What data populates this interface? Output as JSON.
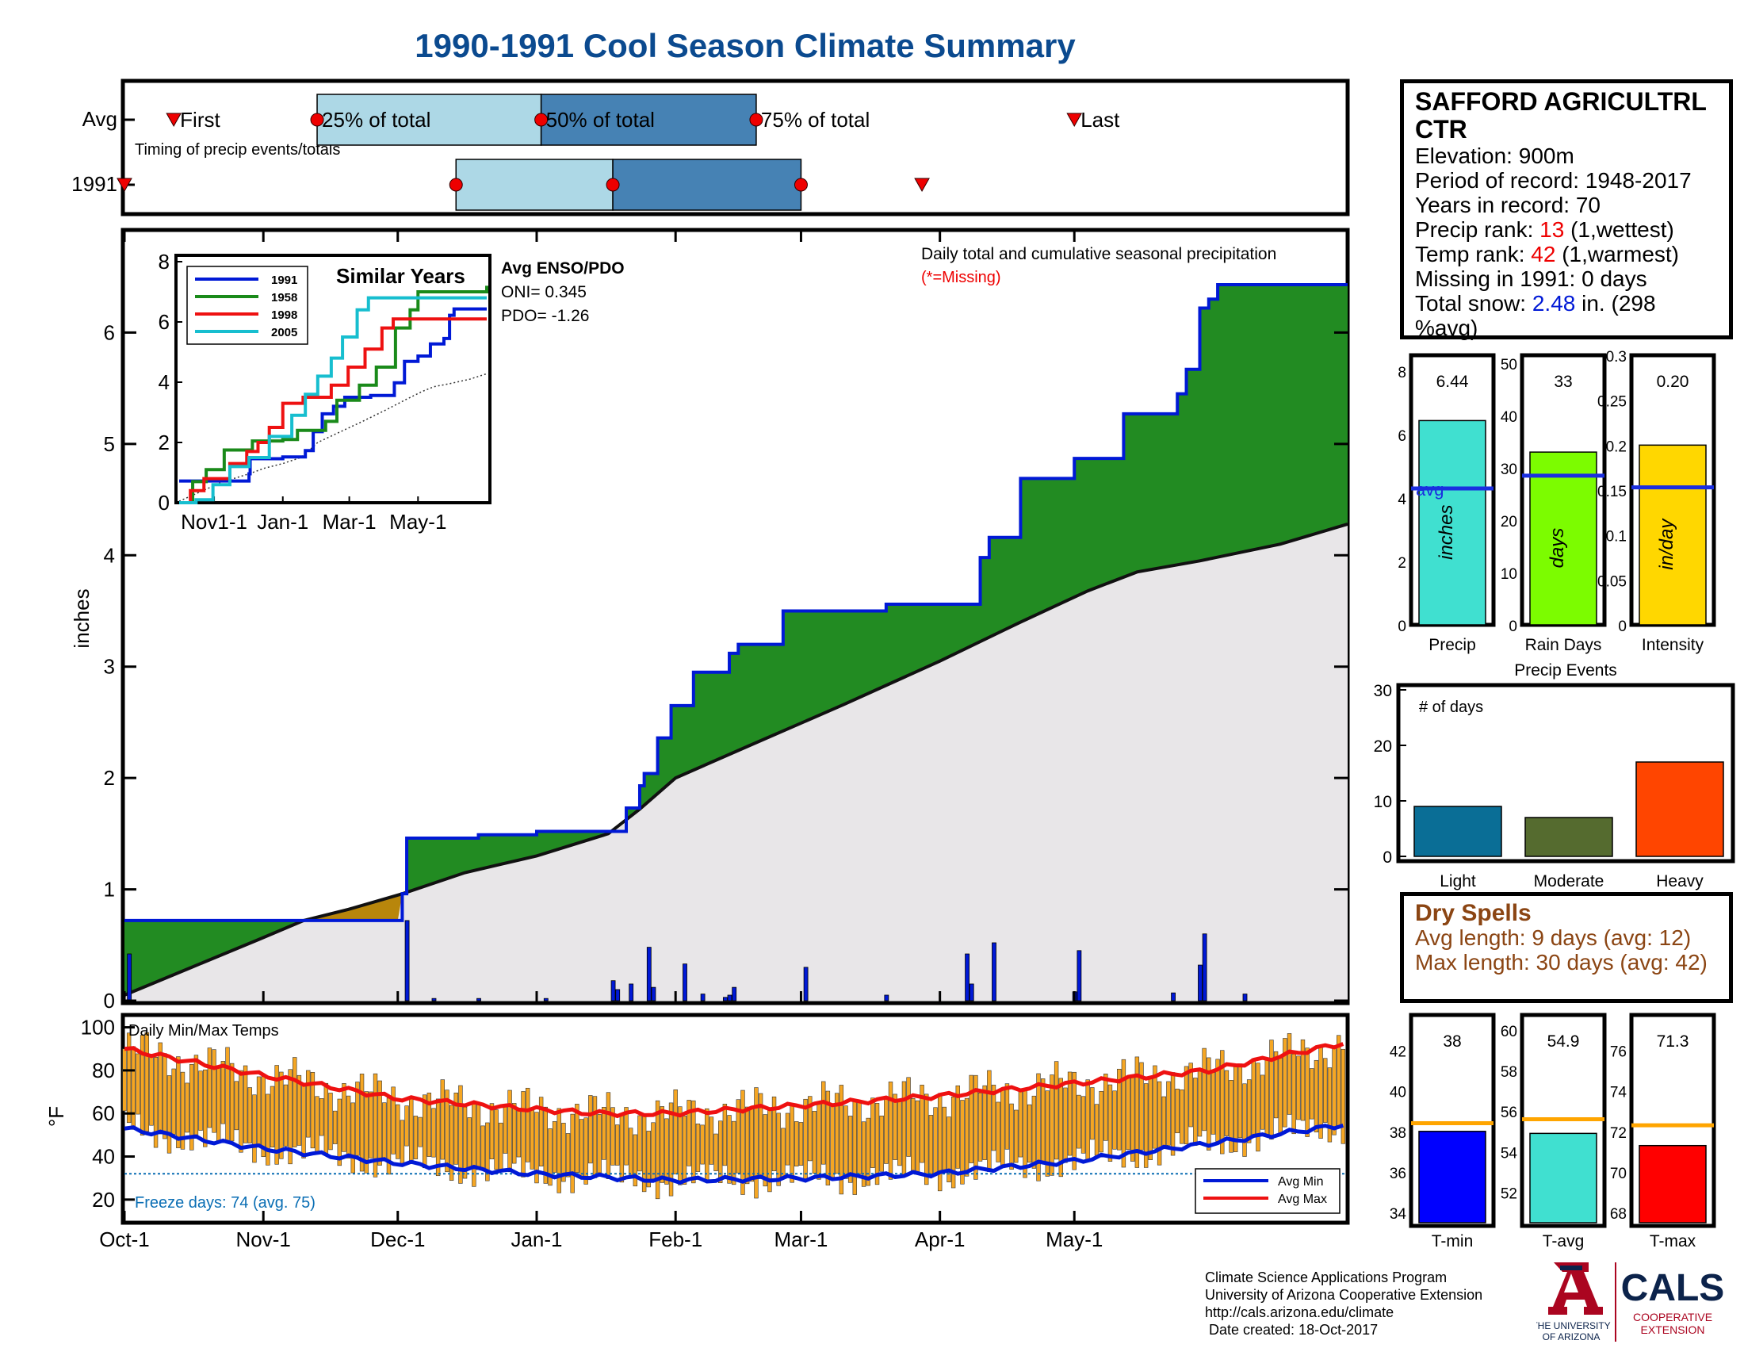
{
  "page_title": "1990-1991 Cool Season Climate Summary",
  "station": {
    "name": "SAFFORD AGRICULTRL CTR",
    "elevation_label": "Elevation: 900m",
    "period_label": "Period of record: 1948-2017",
    "years_label": "Years in record: 70",
    "precip_rank_prefix": "Precip rank: ",
    "precip_rank_value": "13",
    "precip_rank_suffix": " (1,wettest)",
    "temp_rank_prefix": "Temp rank: ",
    "temp_rank_value": "42",
    "temp_rank_suffix": " (1,warmest)",
    "missing_label": "Missing in 1991: 0 days",
    "snow_prefix": "Total snow: ",
    "snow_value": "2.48",
    "snow_suffix": " in. (298 %avg)"
  },
  "dry_spells": {
    "title": "Dry Spells",
    "avg_label": "Avg length: 9 days (avg: 12)",
    "max_label": "Max length: 30 days (avg: 42)"
  },
  "credits": {
    "line1": "Climate Science Applications Program",
    "line2": "University of Arizona Cooperative Extension",
    "line3": "http://cals.arizona.edu/climate",
    "line4": " Date created: 18-Oct-2017"
  },
  "logos": {
    "ua_line1": "THE UNIVERSITY",
    "ua_line2": "OF ARIZONA",
    "cals": "CALS",
    "coop1": "COOPERATIVE",
    "coop2": "EXTENSION"
  },
  "colors": {
    "accent_blue": "#0b4a8f",
    "obs_line": "#0019d6",
    "green_fill": "#228b22",
    "clim_fill": "#e8e6e8",
    "orange_bar": "#f5a623",
    "tmax_line": "#ee1111",
    "tmin_line": "#0019d6"
  },
  "chart_data": [
    {
      "id": "timing",
      "type": "timeline",
      "rows": [
        "Avg",
        "1991"
      ],
      "sublabel": "Timing of precip events/totals",
      "labels": {
        "first": "First",
        "p25": "25% of total",
        "p50": "50% of total",
        "p75": "75% of total",
        "last": "Last"
      },
      "avg": {
        "first": "Oct-12",
        "p25": "Nov-13",
        "p50": "Jan-2",
        "p75": "Feb-19",
        "last": "May-1"
      },
      "y1991": {
        "first": "Oct-1",
        "p25": "Dec-14",
        "p50": "Jan-18",
        "p75": "Mar-1",
        "last": "Mar-28"
      }
    },
    {
      "id": "precip",
      "type": "area",
      "title": "Daily total and cumulative seasonal precipitation",
      "missing_note": "(*=Missing)",
      "ylabel": "inches",
      "ylim": [
        0,
        7
      ],
      "yticks": [
        0,
        1,
        2,
        3,
        4,
        5,
        6
      ],
      "xticks": [
        "Oct-1",
        "Nov-1",
        "Dec-1",
        "Jan-1",
        "Feb-1",
        "Mar-1",
        "Apr-1",
        "May-1"
      ],
      "observed_cumulative": [
        [
          0,
          0.72
        ],
        [
          61,
          0.72
        ],
        [
          62,
          0.96
        ],
        [
          63,
          1.46
        ],
        [
          78,
          1.46
        ],
        [
          79,
          1.49
        ],
        [
          92,
          1.52
        ],
        [
          108,
          1.52
        ],
        [
          112,
          1.73
        ],
        [
          115,
          1.93
        ],
        [
          116,
          2.04
        ],
        [
          119,
          2.36
        ],
        [
          122,
          2.65
        ],
        [
          127,
          2.95
        ],
        [
          135,
          3.12
        ],
        [
          137,
          3.2
        ],
        [
          147,
          3.5
        ],
        [
          162,
          3.5
        ],
        [
          170,
          3.56
        ],
        [
          187,
          3.56
        ],
        [
          191,
          3.98
        ],
        [
          193,
          4.16
        ],
        [
          197,
          4.16
        ],
        [
          200,
          4.69
        ],
        [
          211,
          4.69
        ],
        [
          212,
          4.87
        ],
        [
          223,
          5.27
        ],
        [
          228,
          5.27
        ],
        [
          235,
          5.45
        ],
        [
          237,
          5.67
        ],
        [
          240,
          6.22
        ],
        [
          242,
          6.3
        ],
        [
          244,
          6.43
        ],
        [
          273,
          6.43
        ]
      ],
      "climatology_cumulative": [
        [
          0,
          0.05
        ],
        [
          15,
          0.3
        ],
        [
          30,
          0.55
        ],
        [
          40,
          0.72
        ],
        [
          50,
          0.82
        ],
        [
          62,
          0.96
        ],
        [
          76,
          1.15
        ],
        [
          92,
          1.3
        ],
        [
          108,
          1.5
        ],
        [
          115,
          1.72
        ],
        [
          123,
          2.0
        ],
        [
          140,
          2.3
        ],
        [
          160,
          2.65
        ],
        [
          182,
          3.05
        ],
        [
          200,
          3.4
        ],
        [
          215,
          3.68
        ],
        [
          226,
          3.85
        ],
        [
          240,
          3.95
        ],
        [
          258,
          4.1
        ],
        [
          273,
          4.28
        ]
      ],
      "daily": [
        [
          1,
          0.42
        ],
        [
          63,
          0.72
        ],
        [
          69,
          0.02
        ],
        [
          79,
          0.02
        ],
        [
          94,
          0.02
        ],
        [
          109,
          0.18
        ],
        [
          110,
          0.1
        ],
        [
          113,
          0.15
        ],
        [
          117,
          0.48
        ],
        [
          118,
          0.12
        ],
        [
          125,
          0.33
        ],
        [
          129,
          0.06
        ],
        [
          134,
          0.03
        ],
        [
          135,
          0.05
        ],
        [
          136,
          0.12
        ],
        [
          152,
          0.3
        ],
        [
          170,
          0.05
        ],
        [
          188,
          0.42
        ],
        [
          189,
          0.15
        ],
        [
          194,
          0.52
        ],
        [
          212,
          0.08
        ],
        [
          213,
          0.45
        ],
        [
          234,
          0.07
        ],
        [
          240,
          0.32
        ],
        [
          241,
          0.6
        ],
        [
          250,
          0.06
        ]
      ],
      "inset": {
        "title": "Similar Years",
        "xticks": [
          "Nov1-1",
          "Jan-1",
          "Mar-1",
          "May-1"
        ],
        "ylim": [
          0,
          8
        ],
        "yticks": [
          0,
          2,
          4,
          6,
          8
        ],
        "series": [
          {
            "name": "1991",
            "color": "#0019d6",
            "points": [
              [
                0,
                0.72
              ],
              [
                62,
                0.96
              ],
              [
                63,
                1.46
              ],
              [
                92,
                1.52
              ],
              [
                112,
                1.73
              ],
              [
                119,
                2.36
              ],
              [
                127,
                2.95
              ],
              [
                137,
                3.2
              ],
              [
                147,
                3.5
              ],
              [
                170,
                3.56
              ],
              [
                191,
                3.98
              ],
              [
                200,
                4.69
              ],
              [
                212,
                4.87
              ],
              [
                223,
                5.27
              ],
              [
                235,
                5.45
              ],
              [
                240,
                6.22
              ],
              [
                244,
                6.43
              ],
              [
                273,
                6.43
              ]
            ]
          },
          {
            "name": "1958",
            "color": "#1a8a1a",
            "points": [
              [
                0,
                0
              ],
              [
                12,
                0.7
              ],
              [
                24,
                1.1
              ],
              [
                40,
                1.75
              ],
              [
                65,
                2.05
              ],
              [
                92,
                2.1
              ],
              [
                105,
                2.4
              ],
              [
                130,
                2.7
              ],
              [
                140,
                3.4
              ],
              [
                160,
                3.9
              ],
              [
                175,
                4.5
              ],
              [
                192,
                5.8
              ],
              [
                205,
                6.4
              ],
              [
                212,
                7.0
              ],
              [
                250,
                7.0
              ],
              [
                273,
                7.2
              ]
            ]
          },
          {
            "name": "1998",
            "color": "#ee1111",
            "points": [
              [
                0,
                0
              ],
              [
                10,
                0.4
              ],
              [
                22,
                0.8
              ],
              [
                45,
                1.3
              ],
              [
                60,
                1.7
              ],
              [
                70,
                2.0
              ],
              [
                80,
                2.5
              ],
              [
                92,
                3.3
              ],
              [
                110,
                3.5
              ],
              [
                135,
                3.9
              ],
              [
                150,
                4.5
              ],
              [
                165,
                5.1
              ],
              [
                180,
                5.8
              ],
              [
                190,
                6.1
              ],
              [
                273,
                6.1
              ]
            ]
          },
          {
            "name": "2005",
            "color": "#17becf",
            "points": [
              [
                0,
                0
              ],
              [
                15,
                0.1
              ],
              [
                30,
                0.6
              ],
              [
                45,
                1.2
              ],
              [
                62,
                1.5
              ],
              [
                80,
                2.2
              ],
              [
                100,
                2.9
              ],
              [
                112,
                3.6
              ],
              [
                123,
                4.2
              ],
              [
                135,
                4.8
              ],
              [
                145,
                5.5
              ],
              [
                158,
                6.4
              ],
              [
                168,
                6.8
              ],
              [
                185,
                6.8
              ],
              [
                273,
                6.8
              ]
            ]
          }
        ]
      },
      "enso": {
        "title": "Avg ENSO/PDO",
        "oni": "ONI= 0.345",
        "pdo": "PDO= -1.26"
      }
    },
    {
      "id": "temps",
      "type": "bar_range_line",
      "title": "Daily Min/Max Temps",
      "ylabel": "°F",
      "ylim": [
        10,
        105
      ],
      "yticks": [
        20,
        40,
        60,
        80,
        100
      ],
      "freeze_line": 32,
      "freeze_label": "Freeze days: 74 (avg. 75)",
      "legend": [
        "Avg Min",
        "Avg Max"
      ],
      "avg_max": [
        [
          0,
          90
        ],
        [
          30,
          78
        ],
        [
          61,
          67
        ],
        [
          91,
          62
        ],
        [
          106,
          60
        ],
        [
          122,
          60
        ],
        [
          153,
          64
        ],
        [
          181,
          68
        ],
        [
          212,
          74
        ],
        [
          242,
          80
        ],
        [
          273,
          93
        ]
      ],
      "avg_min": [
        [
          0,
          53
        ],
        [
          30,
          44
        ],
        [
          61,
          37
        ],
        [
          91,
          32
        ],
        [
          122,
          29
        ],
        [
          153,
          30
        ],
        [
          181,
          32
        ],
        [
          212,
          38
        ],
        [
          242,
          46
        ],
        [
          273,
          55
        ]
      ]
    },
    {
      "id": "season_precip",
      "type": "bar",
      "categories": [
        "Precip",
        "Rain Days",
        "Intensity"
      ],
      "values": [
        6.44,
        33,
        0.2
      ],
      "value_labels": [
        "6.44",
        "33",
        "0.20"
      ],
      "averages": [
        4.3,
        28.5,
        0.153
      ],
      "ylims": [
        [
          0,
          8.5
        ],
        [
          0,
          51.5
        ],
        [
          0,
          0.3
        ]
      ],
      "yticks": [
        [
          0,
          2,
          4,
          6,
          8
        ],
        [
          0,
          10,
          20,
          30,
          40,
          50
        ],
        [
          0,
          0.05,
          0.1,
          0.15,
          0.2,
          0.25,
          0.3
        ]
      ],
      "units": [
        "inches",
        "days",
        "in/day"
      ],
      "avg_label": "avg",
      "colors": [
        "#40e0d0",
        "#7cfc00",
        "#ffd700"
      ]
    },
    {
      "id": "events",
      "type": "bar",
      "title": "Precip Events",
      "ylabel": "# of days",
      "categories": [
        "Light",
        "Moderate",
        "Heavy"
      ],
      "values": [
        9,
        7,
        17
      ],
      "ylim": [
        0,
        30
      ],
      "yticks": [
        0,
        10,
        20,
        30
      ],
      "colors": [
        "#0a6e96",
        "#556b2f",
        "#ff4500"
      ]
    },
    {
      "id": "season_temps",
      "type": "bar",
      "categories": [
        "T-min",
        "T-avg",
        "T-max"
      ],
      "values": [
        38,
        54.9,
        71.3
      ],
      "value_labels": [
        "38",
        "54.9",
        "71.3"
      ],
      "averages": [
        38.4,
        55.6,
        72.3
      ],
      "ylims": [
        [
          33.5,
          43.5
        ],
        [
          50.5,
          60.5
        ],
        [
          67.5,
          77.5
        ]
      ],
      "yticks": [
        [
          34,
          36,
          38,
          40,
          42
        ],
        [
          52,
          54,
          56,
          58,
          60
        ],
        [
          68,
          70,
          72,
          74,
          76
        ]
      ],
      "colors": [
        "#0000ff",
        "#40e0d0",
        "#ff0000"
      ]
    }
  ]
}
